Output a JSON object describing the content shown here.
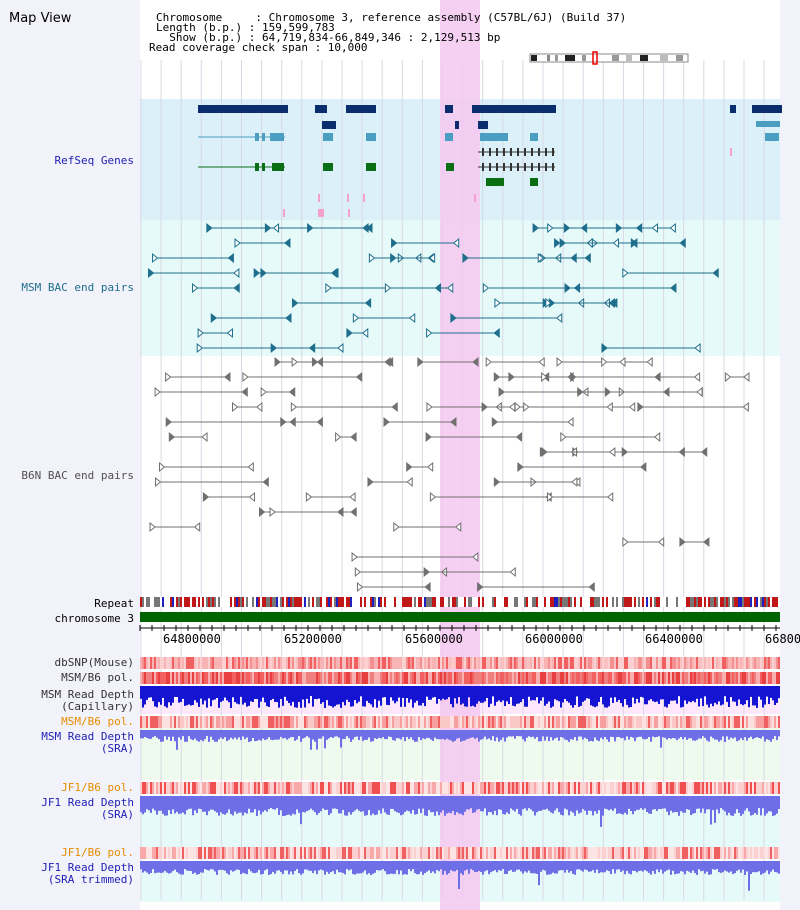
{
  "view_title": "Map View",
  "header": {
    "line1": "Chromosome     : Chromosome 3, reference assembly (C57BL/6J) (Build 37)",
    "line2": "Length (b.p.) : 159,599,783",
    "line3": "  Show (b.p.) : 64,719,834-66,849,346 : 2,129,513 bp",
    "line4": "Read coverage check span : 10,000"
  },
  "tracks": {
    "refseq": "RefSeq Genes",
    "msm_bac": "MSM BAC end pairs",
    "b6n_bac": "B6N BAC end pairs",
    "repeat": "Repeat",
    "chromosome": "chromosome 3",
    "dbsnp": "dbSNP(Mouse)",
    "msm_b6_pol": "MSM/B6 pol.",
    "msm_depth_cap_1": "MSM Read Depth",
    "msm_depth_cap_2": "(Capillary)",
    "msm_b6_pol_2": "MSM/B6 pol.",
    "msm_depth_sra_1": "MSM Read Depth",
    "msm_depth_sra_2": "(SRA)",
    "jf1_b6_pol": "JF1/B6 pol.",
    "jf1_depth_sra_1": "JF1 Read Depth",
    "jf1_depth_sra_2": "(SRA)",
    "jf1_b6_pol_2": "JF1/B6 pol.",
    "jf1_depth_trim_1": "JF1 Read Depth",
    "jf1_depth_trim_2": "(SRA trimmed)"
  },
  "axis": {
    "ticks": [
      "64800000",
      "65200000",
      "65600000",
      "66000000",
      "66400000",
      "66800"
    ]
  },
  "colors": {
    "refseq_bg": "#dcf0fa",
    "msm_bg": "#e6fafa",
    "highlight": "#f5c8f0",
    "gene_dark": "#0a2d6e",
    "gene_mid": "#4a9ec0",
    "gene_green": "#0a6e14",
    "msm_pair": "#1e6e8c",
    "b6n_pair": "#707070",
    "refseq_label": "#1e1eb4",
    "msm_label": "#1e6e8c",
    "b6n_label": "#505050",
    "pol_label": "#e68c00",
    "depth_label": "#1e1eb4",
    "depth_blue": "#1414d2",
    "depth_violet": "#6e6ee6",
    "chrom_green": "#006400"
  }
}
